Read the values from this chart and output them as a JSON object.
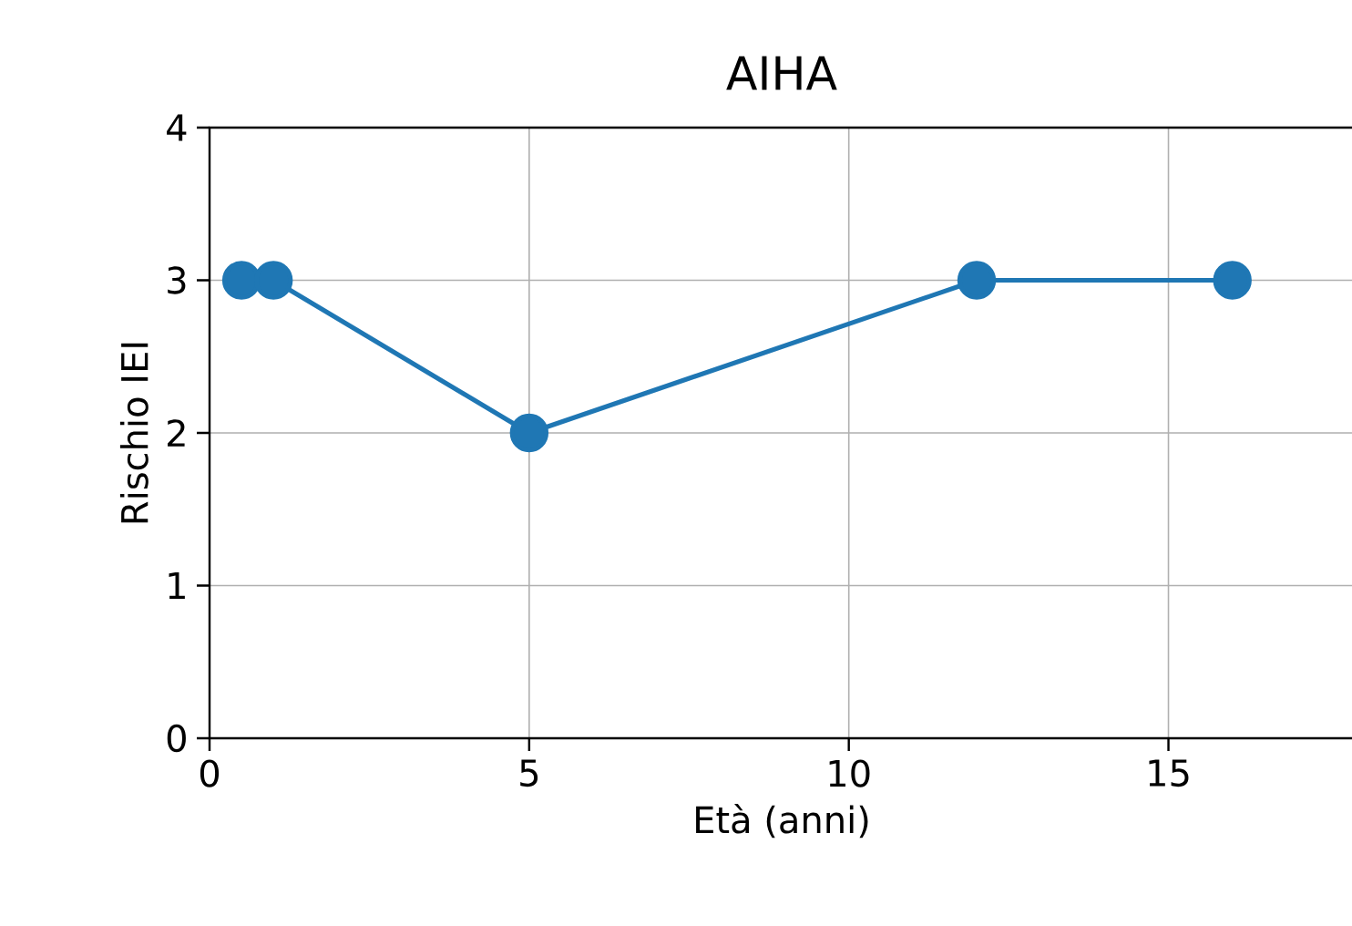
{
  "chart_data": {
    "type": "line",
    "title": "AIHA",
    "xlabel": "Età (anni)",
    "ylabel": "Rischio IEI",
    "x": [
      0.5,
      1,
      5,
      12,
      16
    ],
    "series": [
      {
        "color": "#1f77b4",
        "values": [
          3,
          3,
          2,
          3,
          3
        ]
      }
    ],
    "xlim": [
      0,
      17.9
    ],
    "ylim": [
      0,
      4
    ],
    "xticks": [
      0,
      5,
      10,
      15
    ],
    "yticks": [
      0,
      1,
      2,
      3,
      4
    ],
    "grid": true,
    "marker": "circle",
    "line_style": "solid"
  }
}
